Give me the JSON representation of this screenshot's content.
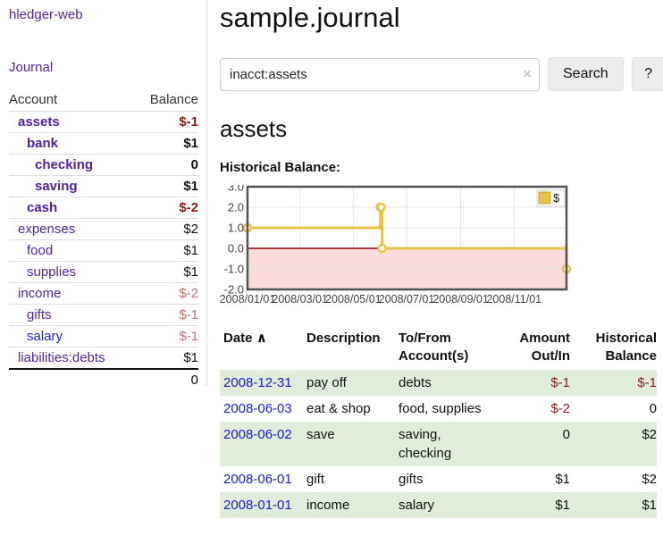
{
  "palette": {
    "link_purple": "#552299",
    "link_blue": "#1a1ace",
    "negative_dark_red": "#8b1a1a",
    "negative_light_red": "#bf7173",
    "stripe_green": "#dfedda",
    "chart_line_gold": "#E8C34A",
    "chart_negative_pink": "#FBDBDB",
    "chart_zero_line": "#8B0000",
    "button_gray": "#ededed"
  },
  "app": {
    "title": "hledger-web"
  },
  "sidebar": {
    "journal_link": "Journal",
    "accounts": {
      "headers": {
        "account": "Account",
        "balance": "Balance"
      },
      "rows": [
        {
          "name": "assets",
          "balance": "$-1"
        },
        {
          "name": "bank",
          "balance": "$1"
        },
        {
          "name": "checking",
          "balance": "0"
        },
        {
          "name": "saving",
          "balance": "$1"
        },
        {
          "name": "cash",
          "balance": "$-2"
        },
        {
          "name": "expenses",
          "balance": "$2"
        },
        {
          "name": "food",
          "balance": "$1"
        },
        {
          "name": "supplies",
          "balance": "$1"
        },
        {
          "name": "income",
          "balance": "$-2"
        },
        {
          "name": "gifts",
          "balance": "$-1"
        },
        {
          "name": "salary",
          "balance": "$-1"
        },
        {
          "name": "liabilities:debts",
          "balance": "$1"
        }
      ],
      "total": "0"
    }
  },
  "main": {
    "title": "sample.journal",
    "search": {
      "value": "inacct:assets",
      "clear_icon": "×",
      "button_label": "Search",
      "help_label": "?"
    },
    "account_heading": "assets"
  },
  "chart_data": {
    "type": "line",
    "step": true,
    "title": "Historical Balance:",
    "x": [
      "2008-01-01",
      "2008-06-01",
      "2008-06-02",
      "2008-06-03",
      "2008-12-31"
    ],
    "series": [
      {
        "name": "$",
        "color": "#E8C34A",
        "values": [
          1,
          2,
          2,
          0,
          -1
        ]
      }
    ],
    "xlim": [
      "2008-01-01",
      "2008-12-31"
    ],
    "ylim": [
      -2,
      3
    ],
    "yticks": [
      3.0,
      2.0,
      1.0,
      0.0,
      -1.0,
      -2.0
    ],
    "xtick_labels": [
      "2008/01/01",
      "2008/03/01",
      "2008/05/01",
      "2008/07/01",
      "2008/09/01",
      "2008/11/01"
    ],
    "grid": true,
    "legend_position": "top-right",
    "zero_line_color": "#8B0000",
    "negative_fill": "#FBDBDB",
    "marker": "open-circle"
  },
  "register": {
    "headers": {
      "date": "Date",
      "sort_arrow": "∧",
      "description": "Description",
      "accounts_line1": "To/From",
      "accounts_line2": "Account(s)",
      "amount_line1": "Amount",
      "amount_line2": "Out/In",
      "balance_line1": "Historical",
      "balance_line2": "Balance"
    },
    "rows": [
      {
        "date": "2008-12-31",
        "description": "pay off",
        "accounts": "debts",
        "amount": "$-1",
        "balance": "$-1"
      },
      {
        "date": "2008-06-03",
        "description": "eat & shop",
        "accounts": "food, supplies",
        "amount": "$-2",
        "balance": "0"
      },
      {
        "date": "2008-06-02",
        "description": "save",
        "accounts": "saving, checking",
        "amount": "0",
        "balance": "$2"
      },
      {
        "date": "2008-06-01",
        "description": "gift",
        "accounts": "gifts",
        "amount": "$1",
        "balance": "$2"
      },
      {
        "date": "2008-01-01",
        "description": "income",
        "accounts": "salary",
        "amount": "$1",
        "balance": "$1"
      }
    ]
  }
}
